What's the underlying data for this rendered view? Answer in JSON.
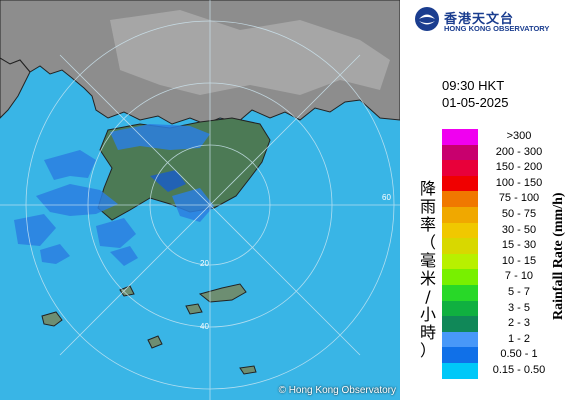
{
  "header": {
    "org_chinese": "香港天文台",
    "org_english": "HONG KONG OBSERVATORY"
  },
  "timestamp": {
    "time": "09:30 HKT",
    "date": "01-05-2025"
  },
  "legend": {
    "title_chinese": "降雨率（毫米/小時）",
    "title_english": "Rainfall Rate (mm/h)",
    "levels": [
      {
        "label": ">300",
        "color": "#f000f0"
      },
      {
        "label": "200 - 300",
        "color": "#c8006e"
      },
      {
        "label": "150 - 200",
        "color": "#e8003a"
      },
      {
        "label": "100 - 150",
        "color": "#f00000"
      },
      {
        "label": "75 - 100",
        "color": "#f07800"
      },
      {
        "label": "50 - 75",
        "color": "#f0a800"
      },
      {
        "label": "30 - 50",
        "color": "#f0c800"
      },
      {
        "label": "15 - 30",
        "color": "#d8d800"
      },
      {
        "label": "10 - 15",
        "color": "#b8f000"
      },
      {
        "label": "7 - 10",
        "color": "#78f000"
      },
      {
        "label": "5 - 7",
        "color": "#28d828"
      },
      {
        "label": "3 - 5",
        "color": "#10b040"
      },
      {
        "label": "2 - 3",
        "color": "#108858"
      },
      {
        "label": "1 - 2",
        "color": "#4898f8"
      },
      {
        "label": "0.50 - 1",
        "color": "#1070e8"
      },
      {
        "label": "0.15 - 0.50",
        "color": "#00c8f8"
      }
    ]
  },
  "map": {
    "range_ring_labels": [
      "20",
      "40",
      "60"
    ],
    "copyright": "© Hong Kong Observatory"
  }
}
